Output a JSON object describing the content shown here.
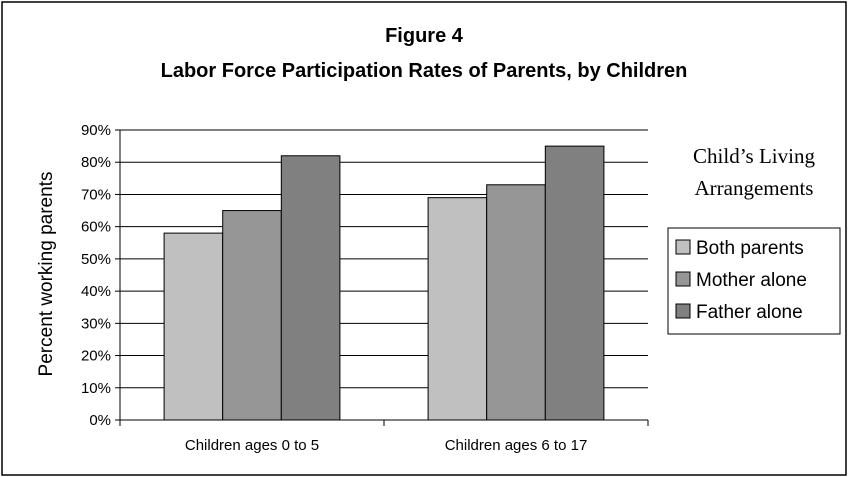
{
  "chart_data": {
    "type": "bar",
    "title_line1": "Figure 4",
    "title_line2": "Labor Force Participation Rates of Parents, by Children",
    "ylabel": "Percent working parents",
    "xlabel": "",
    "ylim": [
      0,
      90
    ],
    "yticks": [
      "0%",
      "10%",
      "20%",
      "30%",
      "40%",
      "50%",
      "60%",
      "70%",
      "80%",
      "90%"
    ],
    "categories": [
      "Children ages 0 to 5",
      "Children ages 6 to 17"
    ],
    "series": [
      {
        "name": "Both parents",
        "values": [
          58,
          69
        ],
        "color": "#c0c0c0"
      },
      {
        "name": "Mother alone",
        "values": [
          65,
          73
        ],
        "color": "#969696"
      },
      {
        "name": "Father alone",
        "values": [
          82,
          85
        ],
        "color": "#808080"
      }
    ],
    "legend_title_line1": "Child’s Living",
    "legend_title_line2": "Arrangements",
    "legend_position": "right",
    "grid": true
  }
}
